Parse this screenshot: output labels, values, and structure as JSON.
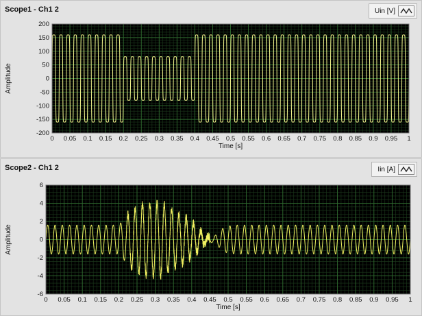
{
  "scopes": [
    {
      "title": "Scope1 - Ch1 2",
      "legend_label": "Uin [V]",
      "ylabel": "Amplitude",
      "xlabel": "Time [s]",
      "trace_color": "#f5f58e",
      "chart_data": {
        "type": "line",
        "title": "Scope1 - Ch1 2",
        "xlabel": "Time [s]",
        "ylabel": "Amplitude",
        "xlim": [
          0,
          1
        ],
        "ylim": [
          -200,
          200
        ],
        "x_ticks": [
          "0",
          "0.05",
          "0.1",
          "0.15",
          "0.2",
          "0.25",
          "0.3",
          "0.35",
          "0.4",
          "0.45",
          "0.5",
          "0.55",
          "0.6",
          "0.65",
          "0.7",
          "0.75",
          "0.8",
          "0.85",
          "0.9",
          "0.95",
          "1"
        ],
        "y_ticks": [
          "200",
          "150",
          "100",
          "50",
          "0",
          "-50",
          "-100",
          "-150",
          "-200"
        ],
        "series": [
          {
            "name": "Uin [V]",
            "waveform": "square-ish sine",
            "frequency_hz": 50,
            "segments": [
              {
                "x_start": 0,
                "x_end": 0.2,
                "amplitude": 160
              },
              {
                "x_start": 0.2,
                "x_end": 0.4,
                "amplitude": 80
              },
              {
                "x_start": 0.4,
                "x_end": 1.0,
                "amplitude": 160
              }
            ]
          }
        ]
      }
    },
    {
      "title": "Scope2 - Ch1  2",
      "legend_label": "Iin [A]",
      "ylabel": "Amplitude",
      "xlabel": "Time [s]",
      "trace_color": "#f0f060",
      "chart_data": {
        "type": "line",
        "title": "Scope2 - Ch1  2",
        "xlabel": "Time [s]",
        "ylabel": "Amplitude",
        "xlim": [
          0,
          1
        ],
        "ylim": [
          -6,
          6
        ],
        "x_ticks": [
          "0",
          "0.05",
          "0.1",
          "0.15",
          "0.2",
          "0.25",
          "0.3",
          "0.35",
          "0.4",
          "0.45",
          "0.5",
          "0.55",
          "0.6",
          "0.65",
          "0.7",
          "0.75",
          "0.8",
          "0.85",
          "0.9",
          "0.95",
          "1"
        ],
        "y_ticks": [
          "6",
          "4",
          "2",
          "0",
          "-2",
          "-4",
          "-6"
        ],
        "series": [
          {
            "name": "Iin [A]",
            "waveform": "sine",
            "frequency_hz": 50,
            "envelope": [
              [
                0,
                1.6
              ],
              [
                0.2,
                1.6
              ],
              [
                0.23,
                3.0
              ],
              [
                0.26,
                4.0
              ],
              [
                0.32,
                4.0
              ],
              [
                0.35,
                3.2
              ],
              [
                0.38,
                2.6
              ],
              [
                0.41,
                1.6
              ],
              [
                0.44,
                0.4
              ],
              [
                0.46,
                0.3
              ],
              [
                0.49,
                1.4
              ],
              [
                0.52,
                1.6
              ],
              [
                1.0,
                1.6
              ]
            ],
            "noise_region": [
              0.22,
              0.45
            ]
          }
        ]
      }
    }
  ]
}
